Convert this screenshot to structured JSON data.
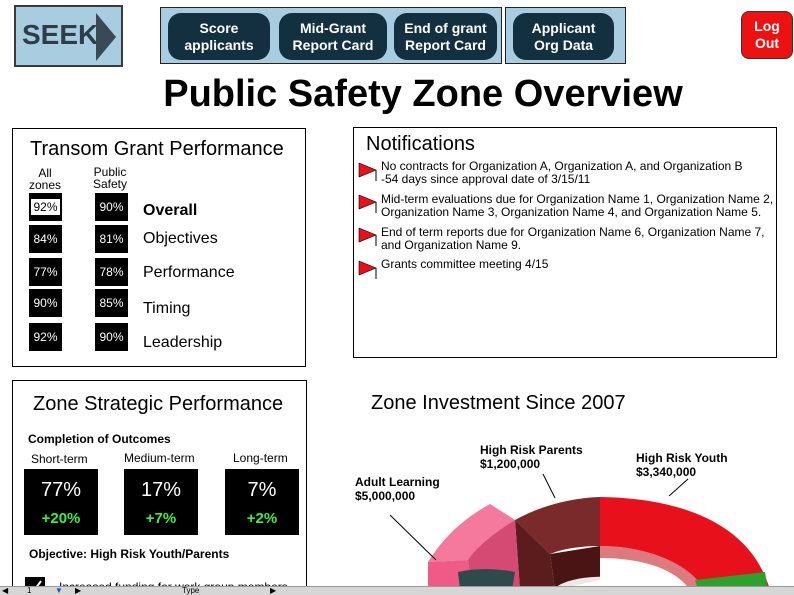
{
  "logo": {
    "text": "SEEK"
  },
  "nav": {
    "buttons": [
      {
        "label": "Score\napplicants"
      },
      {
        "label": "Mid-Grant\nReport Card"
      },
      {
        "label": "End of grant\nReport Card"
      },
      {
        "label": "Applicant\nOrg Data"
      }
    ],
    "logout_label": "Log\nOut"
  },
  "page_title": "Public Safety Zone Overview",
  "transom": {
    "title": "Transom Grant Performance",
    "col_all": "All\nzones",
    "col_public": "Public\nSafety",
    "rows": [
      {
        "label": "Overall",
        "all": "92%",
        "public": "90%"
      },
      {
        "label": "Objectives",
        "all": "84%",
        "public": "81%"
      },
      {
        "label": "Performance",
        "all": "77%",
        "public": "78%"
      },
      {
        "label": "Timing",
        "all": "90%",
        "public": "85%"
      },
      {
        "label": "Leadership",
        "all": "92%",
        "public": "90%"
      }
    ]
  },
  "notifications": {
    "title": "Notifications",
    "items": [
      {
        "text": "No contracts for Organization A, Organization A, and Organization B\n-54 days since approval date of 3/15/11"
      },
      {
        "text": "Mid-term evaluations due for Organization Name 1, Organization Name 2,\nOrganization Name 3, Organization Name 4, and Organization Name 5."
      },
      {
        "text": "End of term reports due for Organization Name 6, Organization Name 7,\nand Organization Name 9."
      },
      {
        "text": "Grants committee meeting 4/15"
      }
    ],
    "flag_color": "#e8101a"
  },
  "strategic": {
    "title": "Zone Strategic Performance",
    "completion_label": "Completion of Outcomes",
    "terms": [
      {
        "label": "Short-term",
        "value": "77%",
        "delta": "+20%"
      },
      {
        "label": "Medium-term",
        "value": "17%",
        "delta": "+7%"
      },
      {
        "label": "Long-term",
        "value": "7%",
        "delta": "+2%"
      }
    ],
    "objective": "Objective: High Risk Youth/Parents",
    "bullet": "Increased funding for work group members"
  },
  "investment": {
    "title": "Zone Investment Since 2007",
    "segments": [
      {
        "name": "High Risk Parents",
        "amount": "$1,200,000",
        "color": "#7a2a2a"
      },
      {
        "name": "High Risk Youth",
        "amount": "$3,340,000",
        "color": "#e8101a"
      },
      {
        "name": "Adult Learning",
        "amount": "$5,000,000",
        "color": "#ef5b86"
      }
    ]
  },
  "bottom_bar": {
    "page": "1",
    "type_label": "Type"
  }
}
